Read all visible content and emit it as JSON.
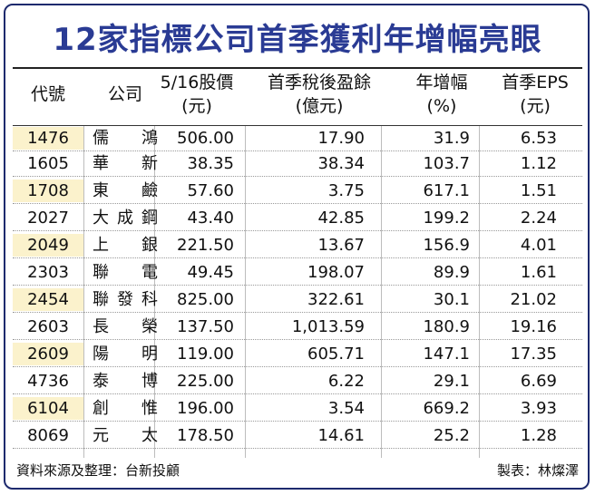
{
  "title": "12家指標公司首季獲利年增幅亮眼",
  "columns": [
    {
      "line1": "代號",
      "line2": ""
    },
    {
      "line1": "公司",
      "line2": ""
    },
    {
      "line1": "5/16股價",
      "line2": "(元)"
    },
    {
      "line1": "首季稅後盈餘",
      "line2": "(億元)"
    },
    {
      "line1": "年增幅",
      "line2": "(%)"
    },
    {
      "line1": "首季EPS",
      "line2": "(元)"
    }
  ],
  "rows": [
    {
      "code": "1476",
      "name": "儒鴻",
      "price": "506.00",
      "earnings": "17.90",
      "growth": "31.9",
      "eps": "6.53"
    },
    {
      "code": "1605",
      "name": "華新",
      "price": "38.35",
      "earnings": "38.34",
      "growth": "103.7",
      "eps": "1.12"
    },
    {
      "code": "1708",
      "name": "東鹼",
      "price": "57.60",
      "earnings": "3.75",
      "growth": "617.1",
      "eps": "1.51"
    },
    {
      "code": "2027",
      "name": "大成鋼",
      "price": "43.40",
      "earnings": "42.85",
      "growth": "199.2",
      "eps": "2.24"
    },
    {
      "code": "2049",
      "name": "上銀",
      "price": "221.50",
      "earnings": "13.67",
      "growth": "156.9",
      "eps": "4.01"
    },
    {
      "code": "2303",
      "name": "聯電",
      "price": "49.45",
      "earnings": "198.07",
      "growth": "89.9",
      "eps": "1.61"
    },
    {
      "code": "2454",
      "name": "聯發科",
      "price": "825.00",
      "earnings": "322.61",
      "growth": "30.1",
      "eps": "21.02"
    },
    {
      "code": "2603",
      "name": "長榮",
      "price": "137.50",
      "earnings": "1,013.59",
      "growth": "180.9",
      "eps": "19.16"
    },
    {
      "code": "2609",
      "name": "陽明",
      "price": "119.00",
      "earnings": "605.71",
      "growth": "147.1",
      "eps": "17.35"
    },
    {
      "code": "4736",
      "name": "泰博",
      "price": "225.00",
      "earnings": "6.22",
      "growth": "29.1",
      "eps": "6.69"
    },
    {
      "code": "6104",
      "name": "創惟",
      "price": "196.00",
      "earnings": "3.54",
      "growth": "669.2",
      "eps": "3.93"
    },
    {
      "code": "8069",
      "name": "元太",
      "price": "178.50",
      "earnings": "14.61",
      "growth": "25.2",
      "eps": "1.28"
    }
  ],
  "footer": {
    "source": "資料來源及整理：台新投顧",
    "credit": "製表：林燦澤"
  },
  "colors": {
    "title": "#2a3b94",
    "border": "#1e2a6e",
    "row_shade": "#fbf2cc"
  }
}
